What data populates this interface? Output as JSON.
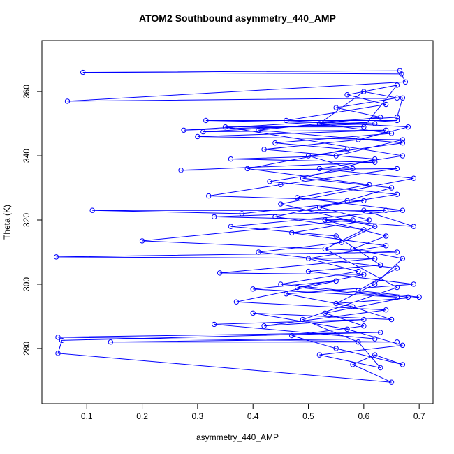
{
  "chart_data": {
    "type": "line",
    "title": "ATOM2 Southbound asymmetry_440_AMP",
    "x_label": "asymmetry_440_AMP",
    "y_label": "Theta (K)",
    "color": "#0000ff",
    "markers": "open-circle",
    "xlim": [
      0.019,
      0.725
    ],
    "ylim": [
      262.8,
      375.9
    ],
    "xticks": [
      0.1,
      0.2,
      0.3,
      0.4,
      0.5,
      0.6,
      0.7
    ],
    "yticks": [
      280,
      300,
      320,
      340,
      360
    ],
    "x": [
      0.665,
      0.093,
      0.668,
      0.675,
      0.065,
      0.67,
      0.66,
      0.275,
      0.62,
      0.315,
      0.66,
      0.31,
      0.64,
      0.3,
      0.67,
      0.55,
      0.36,
      0.62,
      0.27,
      0.66,
      0.45,
      0.32,
      0.6,
      0.38,
      0.11,
      0.64,
      0.33,
      0.58,
      0.2,
      0.66,
      0.045,
      0.62,
      0.34,
      0.6,
      0.48,
      0.66,
      0.4,
      0.55,
      0.37,
      0.64,
      0.42,
      0.6,
      0.33,
      0.62,
      0.143,
      0.66,
      0.048,
      0.63,
      0.055,
      0.048,
      0.65,
      0.58,
      0.62,
      0.67,
      0.55,
      0.47,
      0.6,
      0.53,
      0.68,
      0.45,
      0.59,
      0.5,
      0.64,
      0.47,
      0.61,
      0.52,
      0.66,
      0.43,
      0.58,
      0.5,
      0.67,
      0.41,
      0.63,
      0.55,
      0.66,
      0.6,
      0.52,
      0.65,
      0.44,
      0.57,
      0.39,
      0.61,
      0.48,
      0.67,
      0.36,
      0.55,
      0.63,
      0.5,
      0.69,
      0.46,
      0.58,
      0.65,
      0.4,
      0.57,
      0.67,
      0.52,
      0.63,
      0.59,
      0.49,
      0.66,
      0.53,
      0.6,
      0.44,
      0.57,
      0.65,
      0.49,
      0.62,
      0.42,
      0.59,
      0.68,
      0.46,
      0.64,
      0.57,
      0.66,
      0.6,
      0.35,
      0.67,
      0.52,
      0.69,
      0.45,
      0.62,
      0.56,
      0.41,
      0.66,
      0.59,
      0.7,
      0.55,
      0.62,
      0.67,
      0.58,
      0.64,
      0.53,
      0.69,
      0.6
    ],
    "values": [
      366.5,
      366,
      365.5,
      363,
      357,
      358,
      352,
      348,
      350,
      351,
      351,
      347.5,
      348,
      346,
      345,
      340,
      339,
      338,
      335.5,
      336,
      331,
      327.5,
      326,
      322,
      323,
      323,
      321,
      320,
      313.5,
      310,
      308.5,
      308,
      303.5,
      303,
      299,
      296,
      298.5,
      301,
      294.5,
      292,
      287,
      289,
      287.5,
      283,
      282,
      282,
      283.5,
      285,
      282.5,
      278.5,
      269.5,
      275,
      278,
      275,
      280,
      284,
      287,
      291,
      296,
      300,
      304,
      308,
      312,
      316,
      320,
      324,
      328,
      332,
      336,
      340,
      344,
      348,
      352,
      355,
      358,
      360,
      350,
      347,
      344,
      342,
      336,
      331,
      327,
      323,
      318,
      315,
      306,
      304,
      300,
      297,
      293,
      289,
      291,
      286,
      281,
      278,
      274,
      282,
      289,
      299,
      311,
      317,
      321,
      326,
      330,
      333,
      339,
      342,
      345,
      349,
      351,
      356,
      359,
      362,
      349,
      349,
      340,
      336,
      333,
      325,
      318,
      313,
      310,
      305,
      298,
      296,
      294,
      300,
      308,
      311,
      315,
      320,
      318,
      323
    ]
  }
}
